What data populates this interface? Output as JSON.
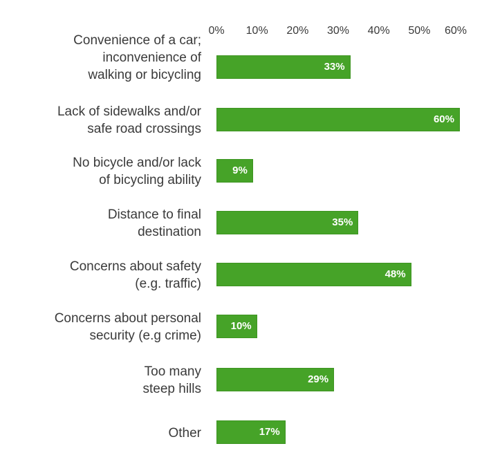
{
  "chart_data": {
    "type": "bar",
    "orientation": "horizontal",
    "title": "",
    "xlabel": "",
    "ylabel": "",
    "xlim": [
      0,
      60
    ],
    "x_ticks": [
      "0%",
      "10%",
      "20%",
      "30%",
      "40%",
      "50%",
      "60%"
    ],
    "x_axis_position": "top",
    "grid": false,
    "legend": "none",
    "bar_color": "#46a328",
    "categories": [
      "Convenience of a car;\ninconvenience of\nwalking or bicycling",
      "Lack of sidewalks and/or\nsafe road crossings",
      "No bicycle and/or lack\nof bicycling ability",
      "Distance to final\ndestination",
      "Concerns about safety\n(e.g. traffic)",
      "Concerns about personal\nsecurity (e.g crime)",
      "Too many\nsteep hills",
      "Other"
    ],
    "values": [
      33,
      60,
      9,
      35,
      48,
      10,
      29,
      17
    ],
    "value_labels": [
      "33%",
      "60%",
      "9%",
      "35%",
      "48%",
      "10%",
      "29%",
      "17%"
    ]
  }
}
